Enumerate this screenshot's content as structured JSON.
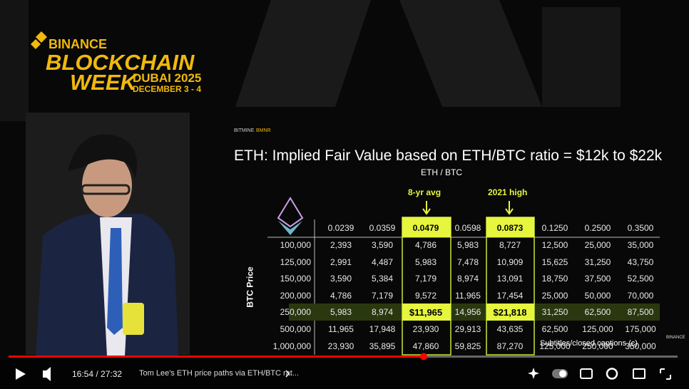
{
  "branding": {
    "brand": "BINANCE",
    "line1": "BLOCKCHAIN",
    "line2": "WEEK",
    "location": "DUBAI 2025",
    "dates": "DECEMBER 3 - 4"
  },
  "slide": {
    "company": "BITMINE",
    "ticker": "BMNR",
    "title": "ETH: Implied Fair Value based on ETH/BTC ratio = $12k to $22k",
    "column_axis": "ETH / BTC",
    "row_axis": "BTC Price",
    "annotations": [
      "8-yr avg",
      "2021 high"
    ],
    "table": {
      "columns": [
        "0.0239",
        "0.0359",
        "0.0479",
        "0.0598",
        "0.0873",
        "0.1250",
        "0.2500",
        "0.3500"
      ],
      "rows": [
        [
          "100,000",
          "2,393",
          "3,590",
          "4,786",
          "5,983",
          "8,727",
          "12,500",
          "25,000",
          "35,000"
        ],
        [
          "125,000",
          "2,991",
          "4,487",
          "5,983",
          "7,478",
          "10,909",
          "15,625",
          "31,250",
          "43,750"
        ],
        [
          "150,000",
          "3,590",
          "5,384",
          "7,179",
          "8,974",
          "13,091",
          "18,750",
          "37,500",
          "52,500"
        ],
        [
          "200,000",
          "4,786",
          "7,179",
          "9,572",
          "11,965",
          "17,454",
          "25,000",
          "50,000",
          "70,000"
        ],
        [
          "250,000",
          "5,983",
          "8,974",
          "$11,965",
          "14,956",
          "$21,818",
          "31,250",
          "62,500",
          "87,500"
        ],
        [
          "500,000",
          "11,965",
          "17,948",
          "23,930",
          "29,913",
          "43,635",
          "62,500",
          "125,000",
          "175,000"
        ],
        [
          "1,000,000",
          "23,930",
          "35,895",
          "47,860",
          "59,825",
          "87,270",
          "125,000",
          "250,000",
          "350,000"
        ]
      ]
    }
  },
  "watermark": "BINANCE",
  "player": {
    "time": "16:54 / 27:32",
    "video_title": "Tom Lee's ETH price paths via ETH/BTC rat...",
    "captions": "Subtitles/closed captions (c)"
  }
}
